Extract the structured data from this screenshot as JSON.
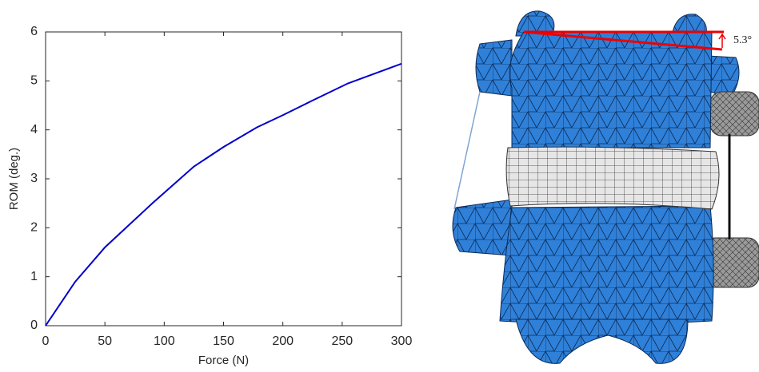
{
  "chart_data": {
    "type": "line",
    "xlabel": "Force (N)",
    "ylabel": "ROM (deg.)",
    "x": [
      0,
      25,
      50,
      70,
      90,
      125,
      150,
      178,
      200,
      225,
      255,
      300
    ],
    "values": [
      0,
      0.9,
      1.6,
      2.05,
      2.5,
      3.25,
      3.65,
      4.05,
      4.3,
      4.6,
      4.95,
      5.35
    ],
    "color": "#0000cc",
    "xlim": [
      0,
      300
    ],
    "xticks": [
      0,
      50,
      100,
      150,
      200,
      250,
      300
    ],
    "ylim": [
      0,
      6
    ],
    "yticks": [
      0,
      1,
      2,
      3,
      4,
      5,
      6
    ],
    "grid": false,
    "annotation": "5.3°"
  }
}
